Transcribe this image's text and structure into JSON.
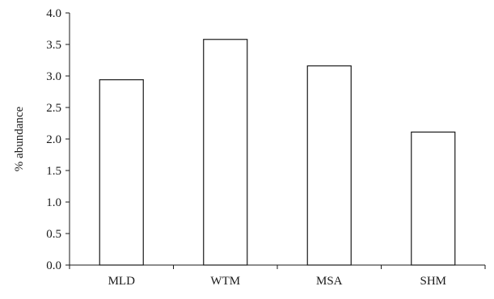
{
  "chart_data": {
    "type": "bar",
    "categories": [
      "MLD",
      "WTM",
      "MSA",
      "SHM"
    ],
    "values": [
      2.94,
      3.58,
      3.16,
      2.11
    ],
    "title": "",
    "xlabel": "",
    "ylabel": "% abundance",
    "ylim": [
      0,
      4.0
    ],
    "yticks": [
      "0.0",
      "0.5",
      "1.0",
      "1.5",
      "2.0",
      "2.5",
      "3.0",
      "3.5",
      "4.0"
    ],
    "grid": false,
    "legend": "none",
    "colors": {
      "bar_fill": "#ffffff",
      "bar_stroke": "#1a1a1a"
    }
  }
}
